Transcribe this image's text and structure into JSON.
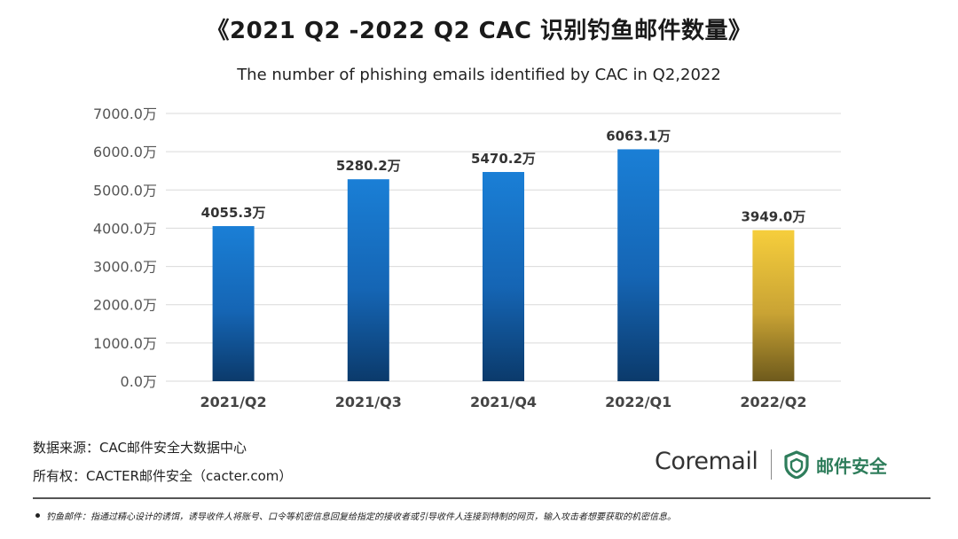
{
  "header": {
    "title": "《2021 Q2 -2022 Q2 CAC 识别钓鱼邮件数量》",
    "subtitle": "The number of phishing emails identified by CAC in Q2,2022"
  },
  "chart_data": {
    "type": "bar",
    "categories": [
      "2021/Q2",
      "2021/Q3",
      "2021/Q4",
      "2022/Q1",
      "2022/Q2"
    ],
    "values": [
      4055.3,
      5280.2,
      5470.2,
      6063.1,
      3949.0
    ],
    "value_labels": [
      "4055.3万",
      "5280.2万",
      "5470.2万",
      "6063.1万",
      "3949.0万"
    ],
    "unit": "万",
    "ylim": [
      0,
      7000
    ],
    "yticks": [
      0,
      1000,
      2000,
      3000,
      4000,
      5000,
      6000,
      7000
    ],
    "ytick_labels": [
      "0.0万",
      "1000.0万",
      "2000.0万",
      "3000.0万",
      "4000.0万",
      "5000.0万",
      "6000.0万",
      "7000.0万"
    ],
    "grid": true,
    "bar_colors": [
      "blue",
      "blue",
      "blue",
      "blue",
      "gold"
    ],
    "colors": {
      "blue_top": "#1a7fd6",
      "blue_bottom": "#0b3a6b",
      "gold_top": "#f6ce3c",
      "gold_bottom": "#6e5a1c",
      "grid": "#d9d9d9"
    }
  },
  "footer": {
    "source": "数据来源：CAC邮件安全大数据中心",
    "copyright": "所有权：CACTER邮件安全（cacter.com）",
    "logo_brand": "Coremail",
    "logo_product": "邮件安全",
    "logo_icon": "shield-icon",
    "logo_color": "#2e7d5b",
    "footnote": "钓鱼邮件：指通过精心设计的诱饵，诱导收件人将账号、口令等机密信息回复给指定的接收者或引导收件人连接到特制的网页，输入攻击者想要获取的机密信息。"
  }
}
